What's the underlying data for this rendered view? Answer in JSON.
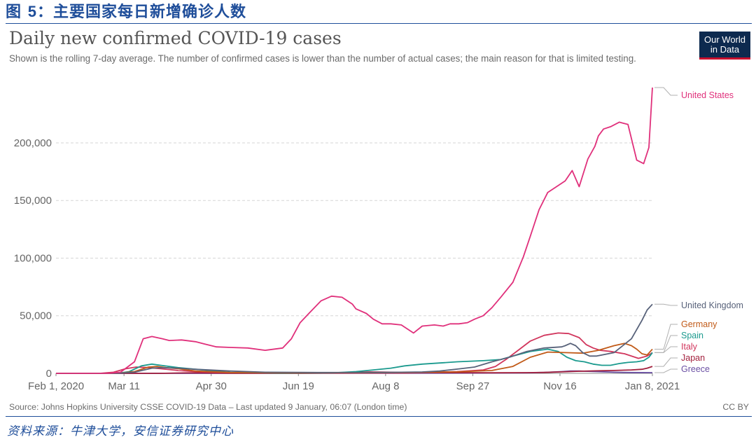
{
  "figure": {
    "label_prefix": "图",
    "label_number": "5",
    "label_title": "：主要国家每日新增确诊人数",
    "footnote": "资料来源：牛津大学，安信证券研究中心"
  },
  "logo": {
    "line1": "Our World",
    "line2": "in Data"
  },
  "source": "Source: Johns Hopkins University CSSE COVID-19 Data – Last updated 9 January, 06:07 (London time)",
  "license": "CC BY",
  "chart_data": {
    "type": "line",
    "title": "Daily new confirmed COVID-19 cases",
    "subtitle": "Shown is the rolling 7-day average. The number of confirmed cases is lower than the number of actual cases; the main reason for that is limited testing.",
    "x_ticks": [
      "Feb 1, 2020",
      "Mar 11",
      "Apr 30",
      "Jun 19",
      "Aug 8",
      "Sep 27",
      "Nov 16",
      "Jan 8, 2021"
    ],
    "x_tick_days": [
      0,
      39,
      89,
      139,
      189,
      239,
      289,
      342
    ],
    "x_range": [
      0,
      342
    ],
    "y_ticks": [
      0,
      50000,
      100000,
      150000,
      200000
    ],
    "y_tick_labels": [
      "0",
      "50,000",
      "100,000",
      "150,000",
      "200,000"
    ],
    "ylim": [
      0,
      248000
    ],
    "grid": true,
    "series": [
      {
        "name": "United States",
        "color": "#e0307b",
        "x": [
          0,
          30,
          37,
          45,
          50,
          55,
          61,
          65,
          72,
          80,
          85,
          92,
          100,
          110,
          120,
          130,
          135,
          140,
          145,
          152,
          158,
          164,
          170,
          172,
          178,
          182,
          187,
          192,
          198,
          205,
          210,
          217,
          222,
          226,
          231,
          236,
          240,
          245,
          250,
          255,
          262,
          268,
          272,
          277,
          282,
          287,
          292,
          296,
          300,
          305,
          309,
          311,
          314,
          318,
          323,
          328,
          333,
          337,
          340,
          342
        ],
        "y": [
          0,
          0,
          1000,
          10000,
          30000,
          32000,
          30000,
          28500,
          29000,
          27500,
          25500,
          23000,
          22500,
          22000,
          20000,
          22000,
          30000,
          44000,
          52000,
          63000,
          67000,
          66000,
          60000,
          56000,
          52000,
          47000,
          43000,
          43000,
          42000,
          35000,
          41000,
          42000,
          41000,
          43000,
          43000,
          44000,
          47000,
          50000,
          57000,
          66000,
          79000,
          101000,
          119000,
          142000,
          157000,
          162000,
          167000,
          176000,
          162000,
          186000,
          197000,
          206000,
          212000,
          214000,
          218000,
          216000,
          185000,
          182000,
          196000,
          248000
        ]
      },
      {
        "name": "United Kingdom",
        "color": "#58627a",
        "x": [
          0,
          35,
          45,
          55,
          60,
          70,
          80,
          100,
          120,
          150,
          190,
          210,
          220,
          232,
          240,
          250,
          260,
          270,
          280,
          290,
          292,
          295,
          298,
          302,
          306,
          310,
          320,
          330,
          336,
          339,
          342
        ],
        "y": [
          0,
          0,
          1000,
          4500,
          5000,
          4500,
          3500,
          2000,
          1000,
          700,
          800,
          1200,
          2000,
          4000,
          5500,
          10000,
          14000,
          19000,
          22000,
          23000,
          24000,
          26000,
          24000,
          18000,
          15000,
          15000,
          18000,
          30000,
          46000,
          55000,
          60000
        ]
      },
      {
        "name": "Germany",
        "color": "#c15a18",
        "x": [
          0,
          35,
          45,
          53,
          58,
          63,
          70,
          80,
          100,
          140,
          190,
          230,
          250,
          262,
          272,
          282,
          292,
          302,
          311,
          320,
          326,
          330,
          333,
          336,
          339,
          342
        ],
        "y": [
          0,
          0,
          1500,
          5500,
          6000,
          5000,
          4000,
          2000,
          700,
          400,
          600,
          1300,
          2500,
          6000,
          14000,
          18500,
          18000,
          17500,
          20000,
          24000,
          26000,
          24000,
          21000,
          17000,
          16000,
          21000
        ]
      },
      {
        "name": "Spain",
        "color": "#1b9a8e",
        "x": [
          0,
          35,
          42,
          49,
          55,
          60,
          70,
          80,
          100,
          130,
          160,
          172,
          182,
          192,
          200,
          210,
          220,
          230,
          245,
          255,
          262,
          272,
          282,
          288,
          293,
          298,
          303,
          308,
          313,
          318,
          323,
          328,
          333,
          337,
          340,
          342
        ],
        "y": [
          0,
          0,
          1500,
          6500,
          8000,
          7000,
          5000,
          3500,
          800,
          200,
          500,
          1500,
          3000,
          4500,
          6500,
          8000,
          9000,
          10000,
          11000,
          12000,
          15000,
          19000,
          21000,
          19000,
          14000,
          11000,
          10000,
          8000,
          7000,
          7000,
          8500,
          9500,
          10000,
          11000,
          14000,
          18000
        ]
      },
      {
        "name": "Italy",
        "color": "#d1355c",
        "x": [
          0,
          25,
          33,
          40,
          46,
          53,
          60,
          70,
          80,
          100,
          130,
          200,
          230,
          245,
          252,
          258,
          265,
          272,
          280,
          288,
          294,
          300,
          304,
          308,
          312,
          318,
          326,
          334,
          339,
          342
        ],
        "y": [
          0,
          0,
          1000,
          4000,
          5500,
          5000,
          4000,
          2500,
          1500,
          500,
          200,
          300,
          1500,
          3000,
          6000,
          12000,
          20000,
          28000,
          33000,
          35000,
          34500,
          31000,
          25000,
          22000,
          20000,
          19000,
          17000,
          13000,
          15000,
          18000
        ]
      },
      {
        "name": "Japan",
        "color": "#a21f3c",
        "x": [
          0,
          60,
          70,
          80,
          100,
          140,
          160,
          170,
          180,
          200,
          250,
          270,
          280,
          290,
          300,
          310,
          320,
          330,
          336,
          339,
          342
        ],
        "y": [
          0,
          0,
          300,
          500,
          100,
          100,
          300,
          800,
          1200,
          800,
          500,
          600,
          800,
          1300,
          1800,
          2200,
          2500,
          3000,
          3500,
          4500,
          6000
        ]
      },
      {
        "name": "Greece",
        "color": "#6a4fa3",
        "x": [
          0,
          60,
          100,
          200,
          250,
          270,
          280,
          290,
          295,
          300,
          310,
          320,
          330,
          342
        ],
        "y": [
          0,
          50,
          10,
          100,
          250,
          400,
          800,
          1500,
          2000,
          2000,
          1500,
          1000,
          700,
          600
        ]
      }
    ],
    "label_order": [
      "United States",
      "United Kingdom",
      "Germany",
      "Spain",
      "Italy",
      "Japan",
      "Greece"
    ]
  }
}
